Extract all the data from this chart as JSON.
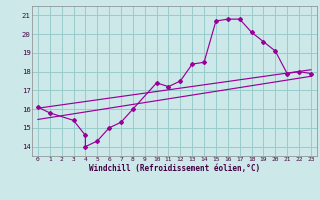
{
  "line1_x": [
    0,
    1,
    3,
    4,
    4,
    5,
    6,
    7,
    8,
    10,
    11,
    12,
    13,
    14,
    15,
    16,
    17,
    18,
    19,
    20,
    21,
    22,
    23
  ],
  "line1_y": [
    16.1,
    15.8,
    15.4,
    14.6,
    14.0,
    14.3,
    15.0,
    15.3,
    16.0,
    17.4,
    17.2,
    17.5,
    18.4,
    18.5,
    20.7,
    20.8,
    20.8,
    20.1,
    19.6,
    19.1,
    17.9,
    18.0,
    17.9
  ],
  "line2_x": [
    0,
    23
  ],
  "line2_y": [
    15.45,
    17.75
  ],
  "line3_x": [
    0,
    23
  ],
  "line3_y": [
    16.05,
    18.1
  ],
  "line_color": "#990099",
  "bg_color": "#cce8e8",
  "grid_color": "#99cccc",
  "xlim": [
    -0.5,
    23.5
  ],
  "ylim": [
    13.5,
    21.5
  ],
  "yticks": [
    14,
    15,
    16,
    17,
    18,
    19,
    20,
    21
  ],
  "xticks": [
    0,
    1,
    2,
    3,
    4,
    5,
    6,
    7,
    8,
    9,
    10,
    11,
    12,
    13,
    14,
    15,
    16,
    17,
    18,
    19,
    20,
    21,
    22,
    23
  ],
  "xlabel": "Windchill (Refroidissement éolien,°C)"
}
